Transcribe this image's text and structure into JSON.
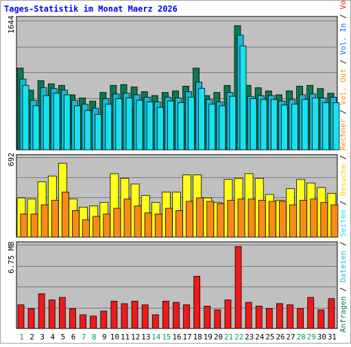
{
  "chart_data": {
    "type": "bar",
    "title": "Tages-Statistik im Monat Maerz 2026",
    "categories": [
      "1",
      "2",
      "3",
      "4",
      "5",
      "6",
      "7",
      "8",
      "9",
      "10",
      "11",
      "12",
      "13",
      "14",
      "15",
      "16",
      "17",
      "18",
      "19",
      "20",
      "21",
      "22",
      "23",
      "24",
      "25",
      "26",
      "27",
      "28",
      "29",
      "30",
      "31"
    ],
    "weekend_days": [
      "1",
      "7",
      "8",
      "14",
      "15",
      "21",
      "22",
      "28",
      "29"
    ],
    "y_axis_labels": {
      "top": "1644",
      "middle": "692",
      "bottom": "6.75 MB"
    },
    "grid": true,
    "legend_position": "right-vertical",
    "panels": [
      {
        "name": "requests",
        "ymax": 1644,
        "series": [
          {
            "name": "Anfragen",
            "color": "#0b7a4f",
            "values": [
              1040,
              760,
              880,
              840,
              820,
              700,
              660,
              620,
              730,
              820,
              830,
              800,
              740,
              690,
              730,
              750,
              810,
              1040,
              690,
              730,
              820,
              1580,
              820,
              790,
              750,
              700,
              750,
              810,
              820,
              780,
              720
            ]
          },
          {
            "name": "Dateien",
            "color": "#19b8d8",
            "values": [
              900,
              630,
              790,
              780,
              760,
              630,
              580,
              530,
              650,
              710,
              720,
              700,
              670,
              610,
              670,
              660,
              740,
              860,
              640,
              610,
              730,
              1460,
              680,
              690,
              690,
              620,
              640,
              700,
              710,
              660,
              670
            ]
          },
          {
            "name": "Seiten",
            "color": "#19e2f0",
            "values": [
              820,
              560,
              690,
              720,
              700,
              560,
              500,
              450,
              580,
              650,
              660,
              630,
              610,
              540,
              620,
              600,
              670,
              780,
              580,
              560,
              680,
              1320,
              650,
              640,
              640,
              570,
              580,
              640,
              660,
              600,
              600
            ]
          }
        ]
      },
      {
        "name": "visits",
        "ymax": 692,
        "series": [
          {
            "name": "Besuche",
            "color": "#ffff18",
            "values": [
              340,
              330,
              480,
              530,
              640,
              330,
              260,
              270,
              300,
              550,
              510,
              460,
              360,
              300,
              390,
              390,
              540,
              540,
              340,
              300,
              500,
              510,
              550,
              510,
              370,
              320,
              420,
              500,
              470,
              430,
              380
            ]
          },
          {
            "name": "Rechner",
            "color": "#f78a18",
            "values": [
              200,
              200,
              280,
              320,
              390,
              230,
              150,
              180,
              200,
              250,
              330,
              270,
              210,
              200,
              250,
              230,
              310,
              340,
              310,
              290,
              320,
              330,
              330,
              320,
              310,
              310,
              280,
              320,
              330,
              300,
              280
            ]
          }
        ]
      },
      {
        "name": "volume",
        "ymax": 6.75,
        "unit": "MB",
        "series": [
          {
            "name": "Volumen",
            "color": "#ee1a1a",
            "values": [
              1.9,
              1.6,
              2.8,
              2.3,
              2.5,
              1.6,
              1.1,
              1.0,
              1.4,
              2.2,
              2.0,
              2.2,
              1.9,
              1.1,
              2.2,
              2.1,
              1.9,
              4.2,
              1.8,
              1.5,
              2.3,
              6.6,
              2.1,
              1.8,
              1.6,
              2.0,
              1.9,
              1.6,
              2.5,
              1.5,
              2.4
            ]
          }
        ]
      }
    ]
  },
  "legend": [
    {
      "text": "Anfragen",
      "color": "#0b7a4f"
    },
    {
      "text": " / ",
      "color": "#000000"
    },
    {
      "text": "Dateien",
      "color": "#19b8d8"
    },
    {
      "text": " / ",
      "color": "#000000"
    },
    {
      "text": "Seiten",
      "color": "#19e2f0"
    },
    {
      "text": " / ",
      "color": "#000000"
    },
    {
      "text": "Besuche",
      "color": "#e8e000"
    },
    {
      "text": " / ",
      "color": "#000000"
    },
    {
      "text": "Rechner",
      "color": "#f78a18"
    },
    {
      "text": " / ",
      "color": "#000000"
    },
    {
      "text": "Vol. Out",
      "color": "#e8a000"
    },
    {
      "text": " / ",
      "color": "#000000"
    },
    {
      "text": "Vol. In",
      "color": "#2060ff"
    },
    {
      "text": " / ",
      "color": "#000000"
    },
    {
      "text": "Volumen",
      "color": "#ee1a1a"
    }
  ],
  "colors": {
    "title": "#0000ff",
    "plot_background": "#c0c0c0",
    "frame": "#000000",
    "weekday_label": "#000000",
    "weekend_label": "#00a050"
  }
}
